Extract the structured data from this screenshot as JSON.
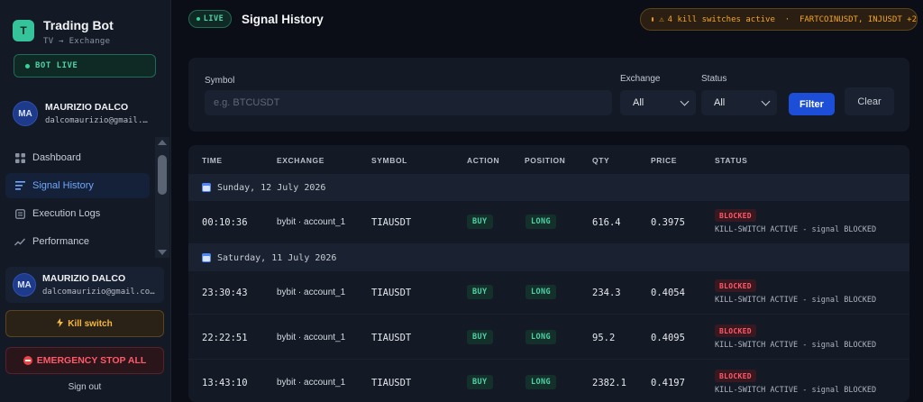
{
  "sidebar": {
    "brand": {
      "logo_letter": "T",
      "title": "Trading Bot",
      "subtitle": "TV → Exchange"
    },
    "bot_status": "BOT LIVE",
    "user": {
      "initials": "MA",
      "name": "MAURIZIO DALCO",
      "email": "dalcomaurizio@gmail.…"
    },
    "nav": [
      {
        "label": "Dashboard",
        "icon": "grid-icon"
      },
      {
        "label": "Signal History",
        "icon": "list-icon",
        "active": true
      },
      {
        "label": "Execution Logs",
        "icon": "document-icon"
      },
      {
        "label": "Performance",
        "icon": "trend-icon"
      }
    ],
    "user_card": {
      "initials": "MA",
      "name": "MAURIZIO DALCO",
      "email": "dalcomaurizio@gmail.co…"
    },
    "kill_switch_label": "Kill switch",
    "emergency_label": "EMERGENCY STOP ALL",
    "signout_label": "Sign out"
  },
  "header": {
    "live_label": "LIVE",
    "title": "Signal History",
    "kill_alert": "4 kill switches active  ·  FARTCOINUSDT, INJUSDT +2"
  },
  "filters": {
    "symbol_label": "Symbol",
    "symbol_placeholder": "e.g. BTCUSDT",
    "symbol_value": "",
    "exchange_label": "Exchange",
    "exchange_value": "All",
    "status_label": "Status",
    "status_value": "All",
    "filter_button": "Filter",
    "clear_button": "Clear"
  },
  "table": {
    "columns": [
      "TIME",
      "EXCHANGE",
      "SYMBOL",
      "ACTION",
      "POSITION",
      "QTY",
      "PRICE",
      "STATUS"
    ],
    "groups": [
      {
        "day": "Sunday, 12 July 2026",
        "rows": [
          {
            "time": "00:10:36",
            "exchange": "bybit · account_1",
            "symbol": "TIAUSDT",
            "action": "BUY",
            "position": "LONG",
            "qty": "616.4",
            "price": "0.3975",
            "status": "BLOCKED",
            "reason": "KILL-SWITCH ACTIVE - signal BLOCKED"
          }
        ]
      },
      {
        "day": "Saturday, 11 July 2026",
        "rows": [
          {
            "time": "23:30:43",
            "exchange": "bybit · account_1",
            "symbol": "TIAUSDT",
            "action": "BUY",
            "position": "LONG",
            "qty": "234.3",
            "price": "0.4054",
            "status": "BLOCKED",
            "reason": "KILL-SWITCH ACTIVE - signal BLOCKED"
          },
          {
            "time": "22:22:51",
            "exchange": "bybit · account_1",
            "symbol": "TIAUSDT",
            "action": "BUY",
            "position": "LONG",
            "qty": "95.2",
            "price": "0.4095",
            "status": "BLOCKED",
            "reason": "KILL-SWITCH ACTIVE - signal BLOCKED"
          },
          {
            "time": "13:43:10",
            "exchange": "bybit · account_1",
            "symbol": "TIAUSDT",
            "action": "BUY",
            "position": "LONG",
            "qty": "2382.1",
            "price": "0.4197",
            "status": "BLOCKED",
            "reason": "KILL-SWITCH ACTIVE - signal BLOCKED"
          }
        ]
      }
    ]
  }
}
